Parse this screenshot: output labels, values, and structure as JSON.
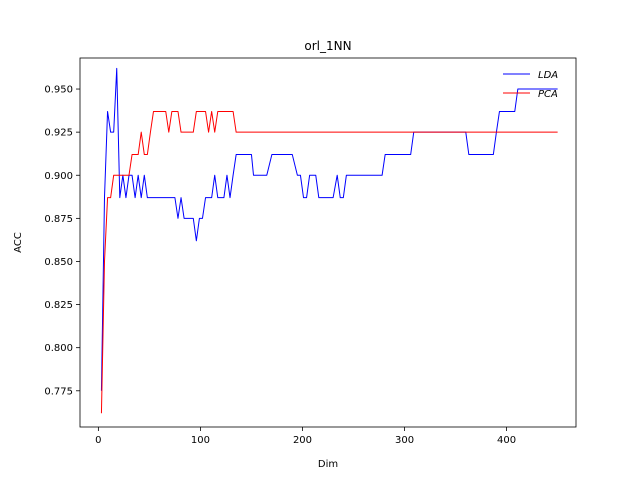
{
  "chart_data": {
    "type": "line",
    "title": "orl_1NN",
    "xlabel": "Dim",
    "ylabel": "ACC",
    "xlim": [
      -18,
      468
    ],
    "ylim": [
      0.754,
      0.968
    ],
    "xticks": [
      0,
      100,
      200,
      300,
      400
    ],
    "yticks": [
      0.775,
      0.8,
      0.825,
      0.85,
      0.875,
      0.9,
      0.925,
      0.95
    ],
    "ytick_labels": [
      "0.775",
      "0.800",
      "0.825",
      "0.850",
      "0.875",
      "0.900",
      "0.925",
      "0.950"
    ],
    "grid": false,
    "legend": "top-right",
    "series": [
      {
        "name": "LDA",
        "color": "#0000ff",
        "x": [
          3,
          6,
          9,
          12,
          15,
          18,
          21,
          24,
          27,
          30,
          33,
          36,
          39,
          42,
          45,
          48,
          51,
          54,
          57,
          60,
          63,
          66,
          69,
          72,
          75,
          78,
          81,
          84,
          87,
          90,
          93,
          96,
          99,
          102,
          105,
          108,
          111,
          114,
          117,
          120,
          123,
          126,
          129,
          132,
          135,
          140,
          150,
          152,
          155,
          165,
          170,
          172,
          175,
          190,
          195,
          198,
          201,
          204,
          207,
          210,
          213,
          216,
          219,
          225,
          230,
          234,
          237,
          240,
          243,
          246,
          250,
          260,
          270,
          278,
          281,
          290,
          300,
          306,
          309,
          320,
          330,
          340,
          350,
          360,
          363,
          370,
          380,
          387,
          390,
          393,
          400,
          408,
          411,
          420,
          430,
          440,
          450
        ],
        "y": [
          0.775,
          0.887,
          0.937,
          0.925,
          0.925,
          0.962,
          0.887,
          0.9,
          0.887,
          0.9,
          0.9,
          0.887,
          0.9,
          0.887,
          0.9,
          0.887,
          0.887,
          0.887,
          0.887,
          0.887,
          0.887,
          0.887,
          0.887,
          0.887,
          0.887,
          0.875,
          0.887,
          0.875,
          0.875,
          0.875,
          0.875,
          0.862,
          0.875,
          0.875,
          0.887,
          0.887,
          0.887,
          0.9,
          0.887,
          0.887,
          0.887,
          0.9,
          0.887,
          0.9,
          0.912,
          0.912,
          0.912,
          0.9,
          0.9,
          0.9,
          0.912,
          0.912,
          0.912,
          0.912,
          0.9,
          0.9,
          0.887,
          0.887,
          0.9,
          0.9,
          0.9,
          0.887,
          0.887,
          0.887,
          0.887,
          0.9,
          0.887,
          0.887,
          0.9,
          0.9,
          0.9,
          0.9,
          0.9,
          0.9,
          0.912,
          0.912,
          0.912,
          0.912,
          0.925,
          0.925,
          0.925,
          0.925,
          0.925,
          0.925,
          0.912,
          0.912,
          0.912,
          0.912,
          0.925,
          0.937,
          0.937,
          0.937,
          0.95,
          0.95,
          0.95,
          0.95,
          0.95
        ]
      },
      {
        "name": "PCA",
        "color": "#ff0000",
        "x": [
          3,
          6,
          9,
          12,
          15,
          18,
          21,
          24,
          27,
          30,
          33,
          36,
          39,
          42,
          45,
          48,
          51,
          54,
          57,
          60,
          63,
          66,
          69,
          72,
          75,
          78,
          81,
          84,
          87,
          90,
          93,
          96,
          99,
          102,
          105,
          108,
          111,
          114,
          117,
          120,
          123,
          126,
          129,
          132,
          135,
          140,
          150,
          200,
          250,
          300,
          350,
          400,
          450
        ],
        "y": [
          0.762,
          0.85,
          0.887,
          0.887,
          0.9,
          0.9,
          0.9,
          0.9,
          0.9,
          0.9,
          0.912,
          0.912,
          0.912,
          0.925,
          0.912,
          0.912,
          0.925,
          0.937,
          0.937,
          0.937,
          0.937,
          0.937,
          0.925,
          0.937,
          0.937,
          0.937,
          0.925,
          0.925,
          0.925,
          0.925,
          0.925,
          0.937,
          0.937,
          0.937,
          0.937,
          0.925,
          0.937,
          0.925,
          0.937,
          0.937,
          0.937,
          0.937,
          0.937,
          0.937,
          0.925,
          0.925,
          0.925,
          0.925,
          0.925,
          0.925,
          0.925,
          0.925,
          0.925
        ]
      }
    ]
  }
}
